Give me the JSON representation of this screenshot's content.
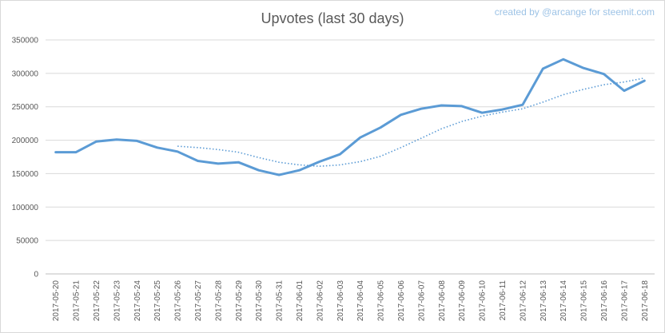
{
  "chart_data": {
    "type": "line",
    "title": "Upvotes (last 30 days)",
    "credit": "created by @arcange for steemit.com",
    "xlabel": "",
    "ylabel": "",
    "ylim": [
      0,
      350000
    ],
    "yticks": [
      0,
      50000,
      100000,
      150000,
      200000,
      250000,
      300000,
      350000
    ],
    "grid": true,
    "categories": [
      "2017-05-20",
      "2017-05-21",
      "2017-05-22",
      "2017-05-23",
      "2017-05-24",
      "2017-05-25",
      "2017-05-26",
      "2017-05-27",
      "2017-05-28",
      "2017-05-29",
      "2017-05-30",
      "2017-05-31",
      "2017-06-01",
      "2017-06-02",
      "2017-06-03",
      "2017-06-04",
      "2017-06-05",
      "2017-06-06",
      "2017-06-07",
      "2017-06-08",
      "2017-06-09",
      "2017-06-10",
      "2017-06-11",
      "2017-06-12",
      "2017-06-13",
      "2017-06-14",
      "2017-06-15",
      "2017-06-16",
      "2017-06-17",
      "2017-06-18"
    ],
    "series": [
      {
        "kind": "solid",
        "color": "#5b9bd5",
        "values": [
          182000,
          182000,
          198000,
          201000,
          199000,
          189000,
          183000,
          169000,
          165000,
          167000,
          155000,
          148000,
          155000,
          168000,
          179000,
          204000,
          219000,
          238000,
          247000,
          252000,
          251000,
          241000,
          246000,
          253000,
          307000,
          321000,
          308000,
          299000,
          274000,
          289000
        ]
      },
      {
        "kind": "trendline-dotted",
        "color": "#5b9bd5",
        "start_index": 6,
        "values": [
          null,
          null,
          null,
          null,
          null,
          null,
          191000,
          189000,
          186000,
          182000,
          174000,
          167000,
          163000,
          161000,
          163000,
          168000,
          176000,
          189000,
          203000,
          217000,
          228000,
          236000,
          242000,
          247000,
          257000,
          268000,
          276000,
          283000,
          287000,
          293000
        ]
      }
    ]
  }
}
